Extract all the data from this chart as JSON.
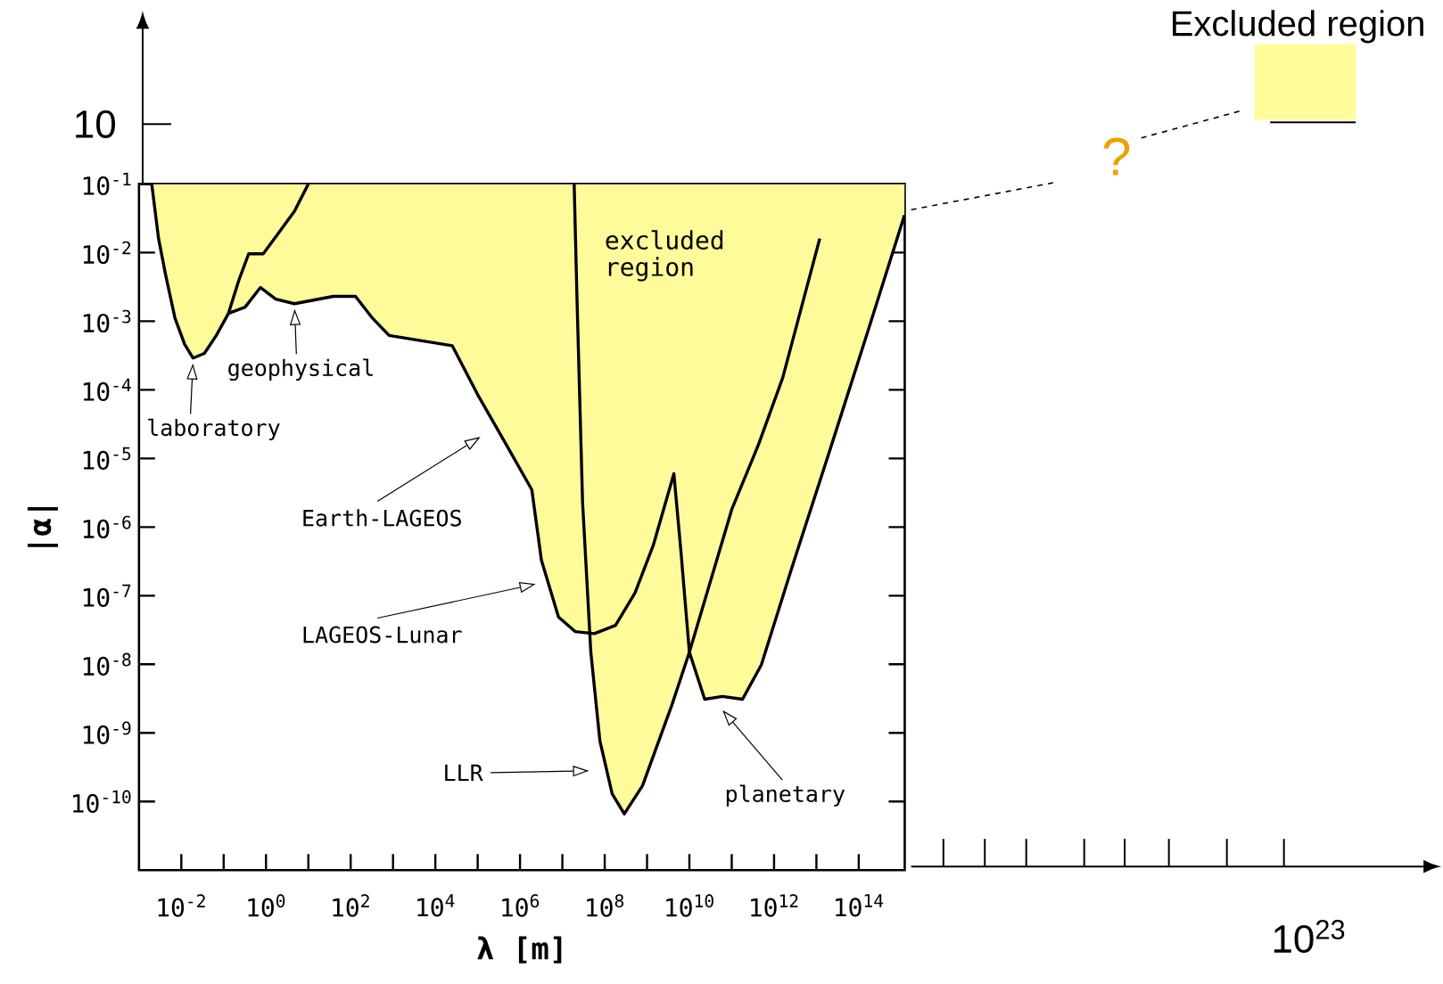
{
  "chart_data": {
    "type": "area",
    "log": "xy",
    "xlabel": "λ [m]",
    "ylabel": "|α|",
    "xlim": [
      0.001,
      1220000000000000.0
    ],
    "ylim": [
      1e-11,
      0.1
    ],
    "xticks": [
      {
        "value": 0.01,
        "label": "10$^{-2}$"
      },
      {
        "value": 1,
        "label": "10$^{0}$"
      },
      {
        "value": 100.0,
        "label": "10$^{2}$"
      },
      {
        "value": 10000.0,
        "label": "10$^{4}$"
      },
      {
        "value": 1000000.0,
        "label": "10$^{6}$"
      },
      {
        "value": 100000000.0,
        "label": "10$^{8}$"
      },
      {
        "value": 10000000000.0,
        "label": "10$^{10}$"
      },
      {
        "value": 1000000000000.0,
        "label": "10$^{12}$"
      },
      {
        "value": 100000000000000.0,
        "label": "10$^{14}$"
      }
    ],
    "yticks": [
      {
        "value": 0.1,
        "label": "10$^{-1}$"
      },
      {
        "value": 0.01,
        "label": "10$^{-2}$"
      },
      {
        "value": 0.001,
        "label": "10$^{-3}$"
      },
      {
        "value": 0.0001,
        "label": "10$^{-4}$"
      },
      {
        "value": 1e-05,
        "label": "10$^{-5}$"
      },
      {
        "value": 1e-06,
        "label": "10$^{-6}$"
      },
      {
        "value": 1e-07,
        "label": "10$^{-7}$"
      },
      {
        "value": 1e-08,
        "label": "10$^{-8}$"
      },
      {
        "value": 1e-09,
        "label": "10$^{-9}$"
      },
      {
        "value": 1e-10,
        "label": "10$^{-10}$"
      }
    ],
    "legend": "top right",
    "series": [
      {
        "name": "Excluded region",
        "color": "#fffb9b",
        "x": [
          0.002,
          0.0029,
          0.0043,
          0.0071,
          0.012,
          0.019,
          0.035,
          0.067,
          0.13,
          0.32,
          0.74,
          1.7,
          4.7,
          39,
          130,
          330,
          810,
          25000.0,
          100000.0,
          470000.0,
          1900000.0,
          3200000.0,
          8100000.0,
          20000000.0,
          45000000.0,
          47000000.0,
          77000000.0,
          150000000.0,
          290000000.0,
          780000000.0,
          3900000000.0,
          10000000000.0,
          23000000000.0,
          60000000000.0,
          180000000000.0,
          500000000000.0,
          2600000000000.0,
          23000000000000.0,
          180000000000000.0,
          1200000000000000.0,
          1220000000000000.0
        ],
        "values": [
          0.1,
          0.016,
          0.0046,
          0.0011,
          0.00046,
          0.00029,
          0.00034,
          0.00062,
          0.0013,
          0.0016,
          0.0031,
          0.0021,
          0.0018,
          0.0023,
          0.0023,
          0.0011,
          0.00062,
          0.00044,
          8.5e-05,
          1.6e-05,
          3.5e-06,
          3.3e-07,
          4.9e-08,
          3e-08,
          2.8e-08,
          1.5e-08,
          7.7e-10,
          1.3e-10,
          6.6e-11,
          1.7e-10,
          2.6e-09,
          1.5e-08,
          3.1e-09,
          3.4e-09,
          3.1e-09,
          9.8e-09,
          2.5e-07,
          1.6e-05,
          0.00085,
          0.035,
          0.1
        ]
      },
      {
        "type": "line",
        "color": "#000000",
        "x": [
          0.002,
          0.0029,
          0.0043,
          0.0071,
          0.012,
          0.019,
          0.035,
          0.067,
          0.13,
          0.23,
          0.39,
          0.86,
          1.7,
          4.7,
          10
        ],
        "values": [
          0.1,
          0.016,
          0.0046,
          0.0011,
          0.00046,
          0.00029,
          0.00034,
          0.00062,
          0.0013,
          0.004,
          0.0096,
          0.0096,
          0.017,
          0.04,
          0.1
        ]
      },
      {
        "type": "line",
        "color": "#000000",
        "x": [
          0.13,
          0.32,
          0.74,
          1.7,
          4.7,
          39,
          130,
          330,
          810,
          25000.0,
          100000.0,
          470000.0,
          1900000.0,
          3200000.0,
          8100000.0,
          20000000.0,
          57000000.0,
          180000000.0,
          520000000.0,
          1400000000.0,
          4300000000.0,
          6300000000.0,
          10000000000.0,
          23000000000.0,
          60000000000.0,
          180000000000.0,
          500000000000.0,
          2600000000000.0,
          23000000000000.0,
          180000000000000.0,
          1200000000000000.0
        ],
        "values": [
          0.0013,
          0.0016,
          0.0031,
          0.0021,
          0.0018,
          0.0023,
          0.0023,
          0.0011,
          0.00062,
          0.00044,
          8.5e-05,
          1.6e-05,
          3.5e-06,
          3.3e-07,
          4.9e-08,
          3e-08,
          2.8e-08,
          3.7e-08,
          1.1e-07,
          5.4e-07,
          6e-06,
          4.5e-07,
          1.5e-08,
          3.1e-09,
          3.4e-09,
          3.1e-09,
          9.8e-09,
          2.5e-07,
          1.6e-05,
          0.00085,
          0.035
        ]
      },
      {
        "type": "line",
        "color": "#000000",
        "x": [
          19000000.0,
          22000000.0,
          30000000.0,
          47000000.0,
          77000000.0,
          150000000.0,
          290000000.0,
          780000000.0,
          3900000000.0,
          10000000000.0,
          100000000000.0,
          430000000000.0,
          1600000000000.0,
          12000000000000.0
        ],
        "values": [
          0.1,
          0.0025,
          2.3e-06,
          1.5e-08,
          7.7e-10,
          1.3e-10,
          6.6e-11,
          1.7e-10,
          2.6e-09,
          1.5e-08,
          1.8e-06,
          1.6e-05,
          0.00015,
          0.016
        ]
      }
    ],
    "annotations": [
      {
        "text": "laboratory",
        "x": 0.019,
        "y": 0.00029
      },
      {
        "text": "geophysical",
        "x": 4.7,
        "y": 0.0018
      },
      "Earth-LAGEOS",
      "LAGEOS-Lunar",
      "LLR",
      "planetary",
      "excluded region",
      "10",
      "10$^{23}$",
      "?"
    ]
  }
}
